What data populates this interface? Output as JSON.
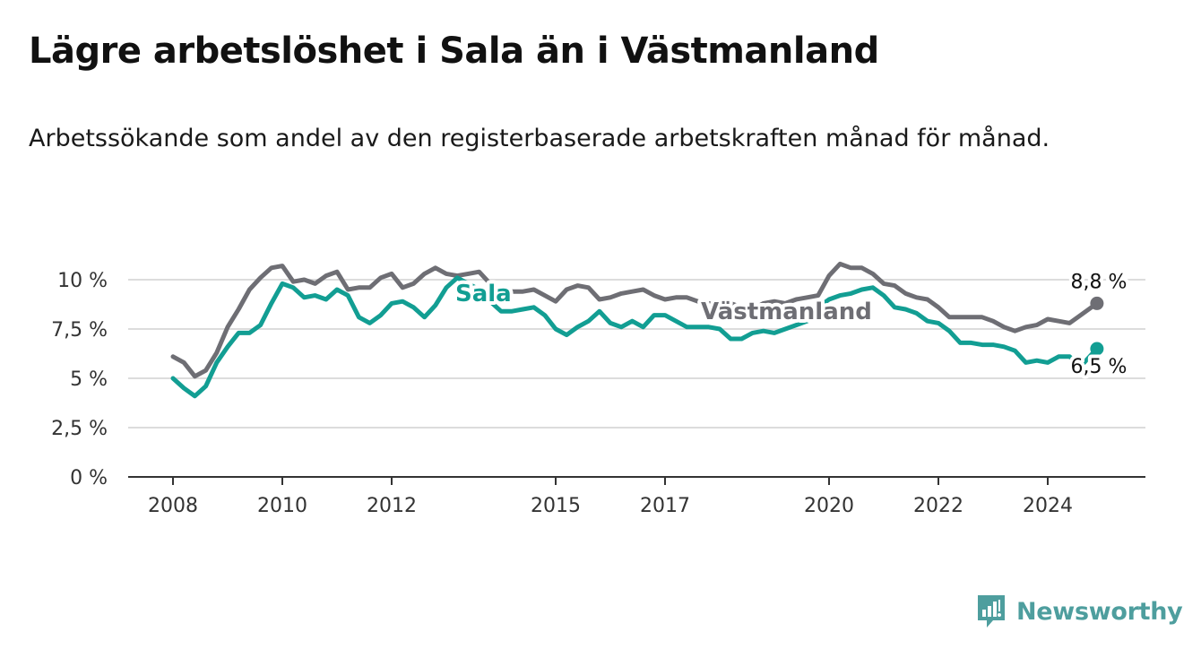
{
  "title": "Lägre arbetslöshet i Sala än i Västmanland",
  "subtitle": "Arbetssökande som andel av den registerbaserade arbetskraften månad för månad.",
  "brand": {
    "name": "Newsworthy",
    "icon": "bar-chart-bubble-icon",
    "color": "#4e9e9e"
  },
  "chart_data": {
    "type": "line",
    "title": "",
    "xlabel": "",
    "ylabel": "",
    "ylim": [
      0,
      10.8
    ],
    "xlim": [
      2007.75,
      2026.4
    ],
    "grid": true,
    "y_ticks": [
      {
        "value": 0,
        "label": "0 %"
      },
      {
        "value": 2.5,
        "label": "2,5 %"
      },
      {
        "value": 5,
        "label": "5 %"
      },
      {
        "value": 7.5,
        "label": "7,5 %"
      },
      {
        "value": 10,
        "label": "10 %"
      }
    ],
    "x_ticks": [
      {
        "value": 2008,
        "label": "2008"
      },
      {
        "value": 2010,
        "label": "2010"
      },
      {
        "value": 2012,
        "label": "2012"
      },
      {
        "value": 2015,
        "label": "2015"
      },
      {
        "value": 2017,
        "label": "2017"
      },
      {
        "value": 2020,
        "label": "2020"
      },
      {
        "value": 2022,
        "label": "2022"
      },
      {
        "value": 2024,
        "label": "2024"
      }
    ],
    "series": [
      {
        "name": "Västmanland",
        "color": "#6e6e74",
        "end_label": "8,8 %",
        "x": [
          2008.0,
          2008.2,
          2008.4,
          2008.6,
          2008.8,
          2009.0,
          2009.2,
          2009.4,
          2009.6,
          2009.8,
          2010.0,
          2010.2,
          2010.4,
          2010.6,
          2010.8,
          2011.0,
          2011.2,
          2011.4,
          2011.6,
          2011.8,
          2012.0,
          2012.2,
          2012.4,
          2012.6,
          2012.8,
          2013.0,
          2013.2,
          2013.4,
          2013.6,
          2013.8,
          2014.0,
          2014.2,
          2014.4,
          2014.6,
          2014.8,
          2015.0,
          2015.2,
          2015.4,
          2015.6,
          2015.8,
          2016.0,
          2016.2,
          2016.4,
          2016.6,
          2016.8,
          2017.0,
          2017.2,
          2017.4,
          2017.6,
          2017.8,
          2018.0,
          2018.2,
          2018.4,
          2018.6,
          2018.8,
          2019.0,
          2019.2,
          2019.4,
          2019.6,
          2019.8,
          2020.0,
          2020.2,
          2020.4,
          2020.6,
          2020.8,
          2021.0,
          2021.2,
          2021.4,
          2021.6,
          2021.8,
          2022.0,
          2022.2,
          2022.4,
          2022.6,
          2022.8,
          2023.0,
          2023.2,
          2023.4,
          2023.6,
          2023.8,
          2024.0,
          2024.2,
          2024.4,
          2024.6,
          2024.9
        ],
        "y": [
          6.1,
          5.8,
          5.1,
          5.4,
          6.3,
          7.6,
          8.5,
          9.5,
          10.1,
          10.6,
          10.7,
          9.9,
          10.0,
          9.8,
          10.2,
          10.4,
          9.5,
          9.6,
          9.6,
          10.1,
          10.3,
          9.6,
          9.8,
          10.3,
          10.6,
          10.3,
          10.2,
          10.3,
          10.4,
          9.8,
          9.0,
          9.4,
          9.4,
          9.5,
          9.2,
          8.9,
          9.5,
          9.7,
          9.6,
          9.0,
          9.1,
          9.3,
          9.4,
          9.5,
          9.2,
          9.0,
          9.1,
          9.1,
          8.9,
          8.8,
          8.7,
          8.8,
          8.6,
          8.5,
          8.8,
          8.9,
          8.8,
          9.0,
          9.1,
          9.2,
          10.2,
          10.8,
          10.6,
          10.6,
          10.3,
          9.8,
          9.7,
          9.3,
          9.1,
          9.0,
          8.6,
          8.1,
          8.1,
          8.1,
          8.1,
          7.9,
          7.6,
          7.4,
          7.6,
          7.7,
          8.0,
          7.9,
          7.8,
          8.2,
          8.8
        ]
      },
      {
        "name": "Sala",
        "color": "#129e93",
        "end_label": "6,5 %",
        "x": [
          2008.0,
          2008.2,
          2008.4,
          2008.6,
          2008.8,
          2009.0,
          2009.2,
          2009.4,
          2009.6,
          2009.8,
          2010.0,
          2010.2,
          2010.4,
          2010.6,
          2010.8,
          2011.0,
          2011.2,
          2011.4,
          2011.6,
          2011.8,
          2012.0,
          2012.2,
          2012.4,
          2012.6,
          2012.8,
          2013.0,
          2013.2,
          2013.4,
          2013.6,
          2013.8,
          2014.0,
          2014.2,
          2014.4,
          2014.6,
          2014.8,
          2015.0,
          2015.2,
          2015.4,
          2015.6,
          2015.8,
          2016.0,
          2016.2,
          2016.4,
          2016.6,
          2016.8,
          2017.0,
          2017.2,
          2017.4,
          2017.6,
          2017.8,
          2018.0,
          2018.2,
          2018.4,
          2018.6,
          2018.8,
          2019.0,
          2019.2,
          2019.4,
          2019.6,
          2019.8,
          2020.0,
          2020.2,
          2020.4,
          2020.6,
          2020.8,
          2021.0,
          2021.2,
          2021.4,
          2021.6,
          2021.8,
          2022.0,
          2022.2,
          2022.4,
          2022.6,
          2022.8,
          2023.0,
          2023.2,
          2023.4,
          2023.6,
          2023.8,
          2024.0,
          2024.2,
          2024.4,
          2024.6,
          2024.9
        ],
        "y": [
          5.0,
          4.5,
          4.1,
          4.6,
          5.8,
          6.6,
          7.3,
          7.3,
          7.7,
          8.8,
          9.8,
          9.6,
          9.1,
          9.2,
          9.0,
          9.5,
          9.2,
          8.1,
          7.8,
          8.2,
          8.8,
          8.9,
          8.6,
          8.1,
          8.7,
          9.6,
          10.1,
          9.8,
          9.5,
          8.9,
          8.4,
          8.4,
          8.5,
          8.6,
          8.2,
          7.5,
          7.2,
          7.6,
          7.9,
          8.4,
          7.8,
          7.6,
          7.9,
          7.6,
          8.2,
          8.2,
          7.9,
          7.6,
          7.6,
          7.6,
          7.5,
          7.0,
          7.0,
          7.3,
          7.4,
          7.3,
          7.5,
          7.7,
          7.9,
          8.6,
          9.0,
          9.2,
          9.3,
          9.5,
          9.6,
          9.2,
          8.6,
          8.5,
          8.3,
          7.9,
          7.8,
          7.4,
          6.8,
          6.8,
          6.7,
          6.7,
          6.6,
          6.4,
          5.8,
          5.9,
          5.8,
          6.1,
          6.1,
          5.6,
          6.5
        ]
      }
    ]
  }
}
